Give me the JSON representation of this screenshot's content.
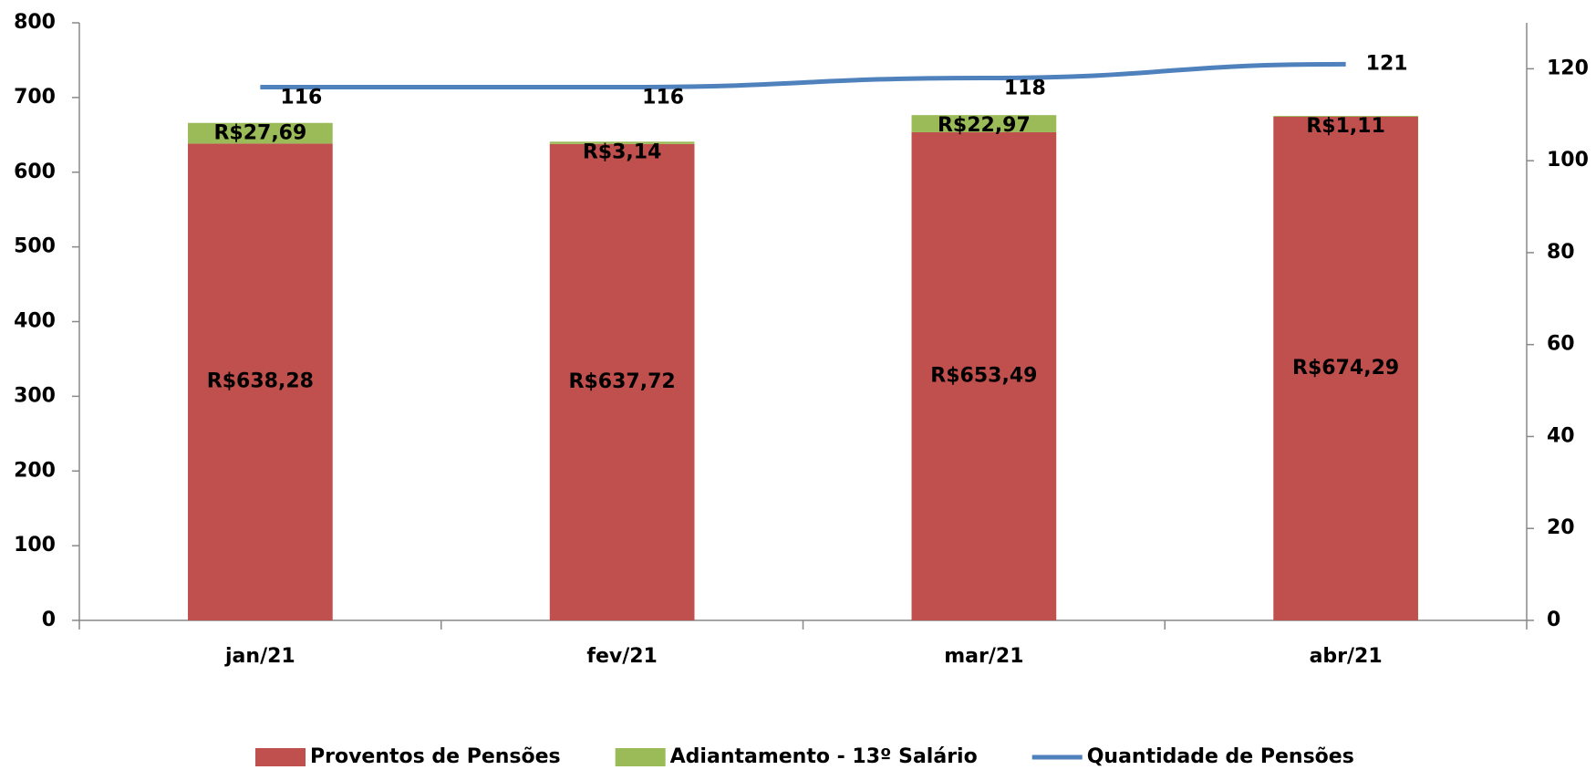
{
  "chart_data": {
    "type": "bar",
    "categories": [
      "jan/21",
      "fev/21",
      "mar/21",
      "abr/21"
    ],
    "series": [
      {
        "name": "Proventos de Pensões",
        "color": "#c0504d",
        "type": "bar",
        "values": [
          638.28,
          637.72,
          653.49,
          674.29
        ],
        "value_labels": [
          "R$638,28",
          "R$637,72",
          "R$653,49",
          "R$674,29"
        ]
      },
      {
        "name": "Adiantamento - 13º Salário",
        "color": "#9bbb59",
        "type": "bar",
        "values": [
          27.69,
          3.14,
          22.97,
          1.11
        ],
        "value_labels": [
          "R$27,69",
          "R$3,14",
          "R$22,97",
          "R$1,11"
        ]
      },
      {
        "name": "Quantidade de Pensões",
        "color": "#4f81bd",
        "type": "line",
        "axis": "y2",
        "values": [
          116,
          116,
          118,
          121
        ]
      }
    ],
    "stacked": true,
    "ylim": [
      0,
      800
    ],
    "yticks": [
      0,
      100,
      200,
      300,
      400,
      500,
      600,
      700,
      800
    ],
    "y2lim": [
      0,
      130
    ],
    "y2ticks": [
      0,
      20,
      40,
      60,
      80,
      100,
      120
    ],
    "legend": "bottom",
    "grid": false
  }
}
